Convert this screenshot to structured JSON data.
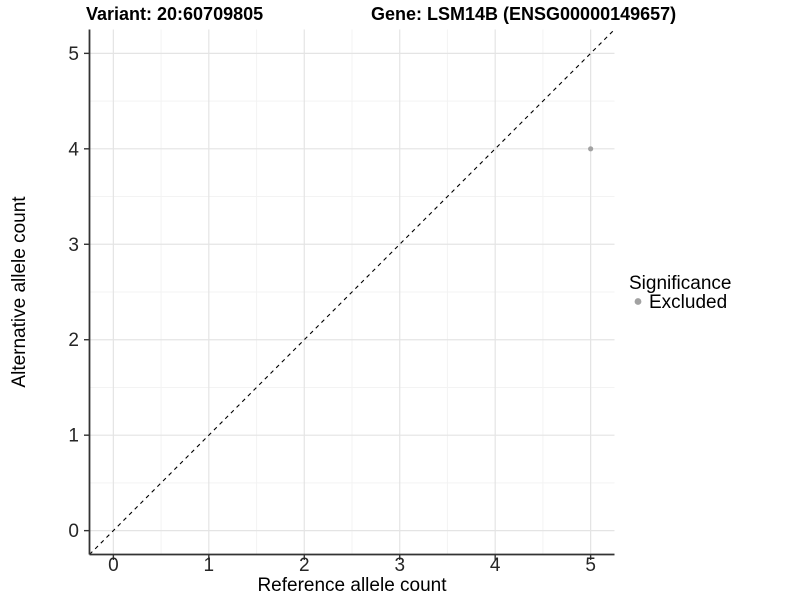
{
  "header": {
    "variant_title": "Variant: 20:60709805",
    "gene_title": "Gene: LSM14B (ENSG00000149657)"
  },
  "legend": {
    "title": "Significance",
    "items": [
      {
        "label": "Excluded",
        "color": "#a2a2a2"
      }
    ]
  },
  "colors": {
    "background": "#ffffff",
    "axis_line": "#333333",
    "tick_mark": "#333333",
    "tick_label": "#262626",
    "grid_major": "#e4e4e4",
    "grid_minor": "#f3f3f3",
    "reference_line": "#000000"
  },
  "chart_data": {
    "type": "scatter",
    "title": "Variant: 20:60709805 | Gene: LSM14B (ENSG00000149657)",
    "xlabel": "Reference allele count",
    "ylabel": "Alternative allele count",
    "xlim": [
      -0.25,
      5.25
    ],
    "ylim": [
      -0.25,
      5.25
    ],
    "x_major_ticks": [
      0,
      1,
      2,
      3,
      4,
      5
    ],
    "y_major_ticks": [
      0,
      1,
      2,
      3,
      4,
      5
    ],
    "x_minor_ticks": [
      0.5,
      1.5,
      2.5,
      3.5,
      4.5
    ],
    "y_minor_ticks": [
      0.5,
      1.5,
      2.5,
      3.5,
      4.5
    ],
    "grid": "major+minor",
    "legend_position": "right",
    "reference_line": {
      "slope": 1,
      "intercept": 0,
      "style": "dashed"
    },
    "series": [
      {
        "name": "Excluded",
        "color": "#a2a2a2",
        "point_radius": 2.6,
        "points": [
          {
            "x": 5,
            "y": 4
          }
        ]
      }
    ]
  }
}
